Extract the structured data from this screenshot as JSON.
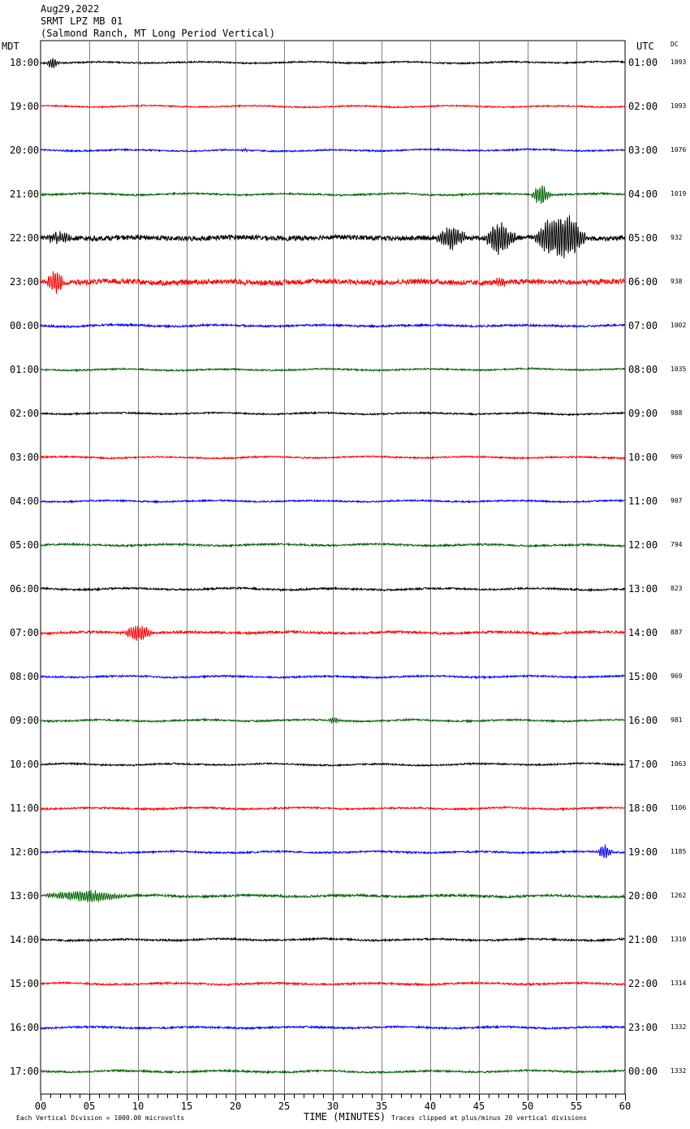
{
  "header": {
    "date": "Aug29,2022",
    "station": "SRMT LPZ MB 01",
    "location": "(Salmond Ranch, MT Long Period Vertical)"
  },
  "axis_labels": {
    "left_tz": "MDT",
    "right_tz": "UTC",
    "dc": "DC",
    "xlabel": "TIME (MINUTES)"
  },
  "footer": {
    "scale_note": "Each Vertical Division = 1000.00 microvolts",
    "clip_note": "Traces clipped at plus/minus 20 vertical divisions"
  },
  "colors": {
    "trace_cycle": [
      "#000000",
      "#ff0000",
      "#0000ff",
      "#006400"
    ],
    "grid": "#808080"
  },
  "chart_data": {
    "type": "line",
    "title": "SRMT LPZ MB 01",
    "xlabel": "TIME (MINUTES)",
    "xlim": [
      0,
      60
    ],
    "x_ticks": [
      "00",
      "05",
      "10",
      "15",
      "20",
      "25",
      "30",
      "35",
      "40",
      "45",
      "50",
      "55",
      "60"
    ],
    "grid": true,
    "series": [
      {
        "mdt": "18:00",
        "utc": "01:00",
        "dc": "1093",
        "color": "#000000",
        "noise": 0.9,
        "events": [
          {
            "t": 0.5,
            "dur": 2.5,
            "amp": 6
          }
        ]
      },
      {
        "mdt": "19:00",
        "utc": "02:00",
        "dc": "1093",
        "color": "#ff0000",
        "noise": 0.8,
        "events": []
      },
      {
        "mdt": "20:00",
        "utc": "03:00",
        "dc": "1076",
        "color": "#0000ff",
        "noise": 0.9,
        "events": [
          {
            "t": 20.5,
            "dur": 1.5,
            "amp": 2
          }
        ]
      },
      {
        "mdt": "21:00",
        "utc": "04:00",
        "dc": "1019",
        "color": "#006400",
        "noise": 1.0,
        "events": [
          {
            "t": 50.3,
            "dur": 3.5,
            "amp": 12
          }
        ]
      },
      {
        "mdt": "22:00",
        "utc": "05:00",
        "dc": "932",
        "color": "#000000",
        "noise": 3.0,
        "events": [
          {
            "t": 0.5,
            "dur": 4.5,
            "amp": 8
          },
          {
            "t": 40.5,
            "dur": 5.5,
            "amp": 14
          },
          {
            "t": 45.5,
            "dur": 5.5,
            "amp": 20
          },
          {
            "t": 50.5,
            "dur": 9.5,
            "amp": 28
          }
        ]
      },
      {
        "mdt": "23:00",
        "utc": "06:00",
        "dc": "938",
        "color": "#ff0000",
        "noise": 3.2,
        "events": [
          {
            "t": 0.5,
            "dur": 3.5,
            "amp": 14
          },
          {
            "t": 46.5,
            "dur": 2.5,
            "amp": 6
          }
        ]
      },
      {
        "mdt": "00:00",
        "utc": "07:00",
        "dc": "1002",
        "color": "#0000ff",
        "noise": 1.2,
        "events": []
      },
      {
        "mdt": "01:00",
        "utc": "08:00",
        "dc": "1035",
        "color": "#006400",
        "noise": 0.9,
        "events": []
      },
      {
        "mdt": "02:00",
        "utc": "09:00",
        "dc": "988",
        "color": "#000000",
        "noise": 0.9,
        "events": []
      },
      {
        "mdt": "03:00",
        "utc": "10:00",
        "dc": "969",
        "color": "#ff0000",
        "noise": 0.9,
        "events": []
      },
      {
        "mdt": "04:00",
        "utc": "11:00",
        "dc": "907",
        "color": "#0000ff",
        "noise": 0.9,
        "events": []
      },
      {
        "mdt": "05:00",
        "utc": "12:00",
        "dc": "794",
        "color": "#006400",
        "noise": 1.1,
        "events": []
      },
      {
        "mdt": "06:00",
        "utc": "13:00",
        "dc": "823",
        "color": "#000000",
        "noise": 1.1,
        "events": []
      },
      {
        "mdt": "07:00",
        "utc": "14:00",
        "dc": "887",
        "color": "#ff0000",
        "noise": 1.4,
        "events": [
          {
            "t": 8.5,
            "dur": 5.0,
            "amp": 10
          }
        ]
      },
      {
        "mdt": "08:00",
        "utc": "15:00",
        "dc": "969",
        "color": "#0000ff",
        "noise": 1.0,
        "events": []
      },
      {
        "mdt": "09:00",
        "utc": "16:00",
        "dc": "981",
        "color": "#006400",
        "noise": 1.0,
        "events": [
          {
            "t": 29.5,
            "dur": 2.0,
            "amp": 4
          }
        ]
      },
      {
        "mdt": "10:00",
        "utc": "17:00",
        "dc": "1063",
        "color": "#000000",
        "noise": 0.9,
        "events": []
      },
      {
        "mdt": "11:00",
        "utc": "18:00",
        "dc": "1106",
        "color": "#ff0000",
        "noise": 1.0,
        "events": []
      },
      {
        "mdt": "12:00",
        "utc": "19:00",
        "dc": "1185",
        "color": "#0000ff",
        "noise": 1.0,
        "events": [
          {
            "t": 57.0,
            "dur": 3.0,
            "amp": 8
          }
        ]
      },
      {
        "mdt": "13:00",
        "utc": "20:00",
        "dc": "1262",
        "color": "#006400",
        "noise": 1.4,
        "events": [
          {
            "t": 0.0,
            "dur": 15.0,
            "amp": 7
          }
        ]
      },
      {
        "mdt": "14:00",
        "utc": "21:00",
        "dc": "1310",
        "color": "#000000",
        "noise": 1.1,
        "events": []
      },
      {
        "mdt": "15:00",
        "utc": "22:00",
        "dc": "1314",
        "color": "#ff0000",
        "noise": 1.1,
        "events": []
      },
      {
        "mdt": "16:00",
        "utc": "23:00",
        "dc": "1332",
        "color": "#0000ff",
        "noise": 1.1,
        "events": []
      },
      {
        "mdt": "17:00",
        "utc": "00:00",
        "dc": "1332",
        "color": "#006400",
        "noise": 1.1,
        "events": []
      }
    ]
  }
}
